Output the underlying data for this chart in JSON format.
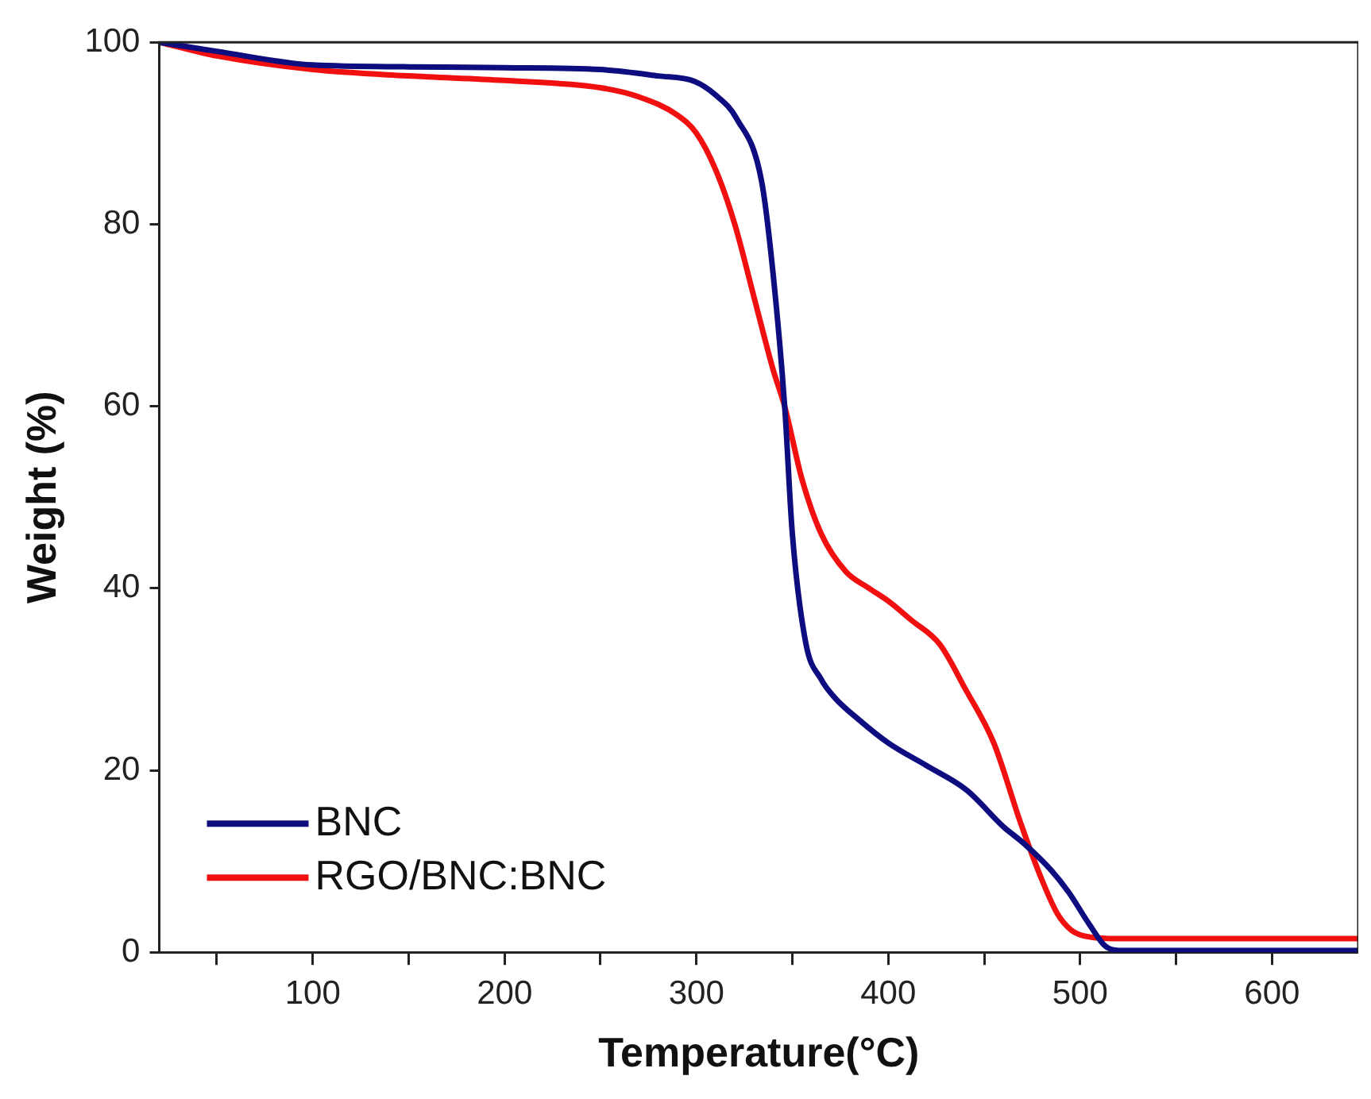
{
  "chart_data": {
    "type": "line",
    "xlabel": "Temperature(°C)",
    "ylabel": "Weight (%)",
    "xlim": [
      20,
      645
    ],
    "ylim": [
      0,
      100
    ],
    "xticks": [
      {
        "value": 50,
        "label": null
      },
      100,
      {
        "value": 150,
        "label": null
      },
      200,
      {
        "value": 250,
        "label": null
      },
      300,
      {
        "value": 350,
        "label": null
      },
      400,
      {
        "value": 450,
        "label": null
      },
      500,
      {
        "value": 550,
        "label": null
      },
      600
    ],
    "yticks": [
      0,
      20,
      40,
      60,
      80,
      100
    ],
    "grid": false,
    "legend": "bottom left",
    "marker": "none",
    "line_style": "solid",
    "series": [
      {
        "name": "BNC",
        "color": "#0d0d80",
        "x": [
          20,
          50,
          100,
          150,
          200,
          250,
          280,
          299,
          310,
          321,
          334,
          340,
          346,
          350,
          357,
          365,
          372,
          385,
          400,
          420,
          441,
          460,
          471,
          485,
          494,
          505,
          513,
          520,
          560,
          600,
          645
        ],
        "values": [
          100,
          99,
          97.5,
          97.3,
          97.2,
          97,
          96.3,
          95.7,
          94.2,
          91.6,
          84.7,
          74.5,
          60,
          46,
          34,
          30,
          28,
          25.5,
          23,
          20.5,
          17.8,
          13.8,
          11.9,
          9,
          6.6,
          3,
          0.7,
          0.2,
          0.2,
          0.2,
          0.2
        ]
      },
      {
        "name": "RGO/BNC:BNC",
        "color": "#f01010",
        "x": [
          20,
          50,
          100,
          150,
          200,
          250,
          270,
          290,
          300,
          310,
          320,
          330,
          340,
          346,
          355,
          365,
          378,
          390,
          400,
          412,
          427,
          440,
          455,
          469,
          480,
          488,
          495,
          502,
          520,
          600,
          645
        ],
        "values": [
          100,
          98.5,
          97,
          96.3,
          95.8,
          95,
          94,
          92,
          90,
          86,
          80,
          72,
          64,
          60,
          52,
          46,
          41.8,
          40,
          38.6,
          36.5,
          33.8,
          29,
          23,
          14.2,
          8,
          4.3,
          2.5,
          1.8,
          1.5,
          1.5,
          1.5
        ]
      }
    ]
  }
}
